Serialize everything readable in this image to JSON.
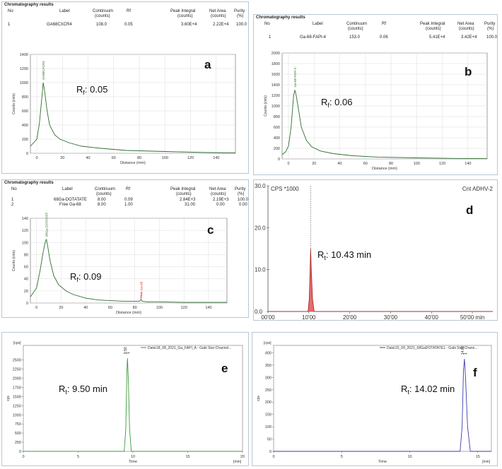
{
  "table_title": "Chromatography results",
  "table_headers": {
    "no": "No",
    "label": "Label",
    "continuum": [
      "Continuum",
      "(counts)"
    ],
    "rf": "Rf",
    "peak": [
      "Peak Integral",
      "(counts)"
    ],
    "net": [
      "Net Area",
      "(counts)"
    ],
    "purity": [
      "Purity",
      "(%)"
    ]
  },
  "panels": {
    "a": {
      "letter": "a",
      "rows": [
        {
          "no": "1",
          "label": "GA68CXCR4",
          "continuum": "108.0",
          "rf": "0.05",
          "peak": "3.60E+4",
          "net": "2.22E+4",
          "purity": "100.0"
        }
      ],
      "annotation_R": "R",
      "annotation_sub": "f",
      "annotation_val": ": 0.05",
      "peak_label": "GA68CXCR4"
    },
    "b": {
      "letter": "b",
      "rows": [
        {
          "no": "1",
          "label": "Ga-68-FAPI-4",
          "continuum": "153.0",
          "rf": "0.06",
          "peak": "5.41E+4",
          "net": "3.42E+4",
          "purity": "100.0"
        }
      ],
      "annotation_R": "R",
      "annotation_sub": "f",
      "annotation_val": ": 0.06",
      "peak_label": "Ga-68-FAPI-4"
    },
    "c": {
      "letter": "c",
      "rows": [
        {
          "no": "1",
          "label": "68Ga-DOTATATE",
          "continuum": "8.00",
          "rf": "0.09",
          "peak": "2.84E+3",
          "net": "2.19E+3",
          "purity": "100.0"
        },
        {
          "no": "2",
          "label": "Free Ga-68",
          "continuum": "8.00",
          "rf": "1.00",
          "peak": "31.00",
          "net": "0.00",
          "purity": "0.00"
        }
      ],
      "annotation_R": "R",
      "annotation_sub": "f",
      "annotation_val": ": 0.09",
      "peak_label": "68Ga-DOTATATE",
      "peak2_label": "Free Ga-68"
    },
    "d": {
      "letter": "d",
      "annotation_R": "R",
      "annotation_sub": "t",
      "annotation_val": ": 10.43 min",
      "ylabel": "CPS *1000",
      "top_right": "Cnt ADHV-2"
    },
    "e": {
      "letter": "e",
      "annotation_R": "R",
      "annotation_sub": "t",
      "annotation_val": ": 9.50 min",
      "legend": "Data\\18_08_2021_Ga_FAPI_A - Gabi Star:Channel...",
      "peak_label": "9.50",
      "peak_mark": "1",
      "unit_y": "[cps]",
      "unit_x": "[min]",
      "xlabel": "Time",
      "ylabel": "cps"
    },
    "f": {
      "letter": "f",
      "annotation_R": "R",
      "annotation_sub": "t",
      "annotation_val": ": 14.02 min",
      "legend": "Data\\15_09_2021_68GaDOTATATE1 - Gabi Star:Chann...",
      "peak_label": "14.02",
      "peak_mark": "1",
      "unit_y": "[cps]",
      "unit_x": "[min]",
      "xlabel": "Time",
      "ylabel": "cps"
    }
  },
  "chart_data": [
    {
      "type": "line",
      "panel": "a",
      "xlabel": "Distance (mm)",
      "ylabel": "Counts (cnts)",
      "xlim": [
        -5,
        155
      ],
      "ylim": [
        0,
        1400
      ],
      "xticks": [
        0,
        20,
        40,
        60,
        80,
        100,
        120,
        140
      ],
      "yticks": [
        0,
        200,
        400,
        600,
        800,
        1000,
        1200,
        1400
      ],
      "series": [
        {
          "x": [
            -5,
            0,
            2,
            4,
            5,
            6,
            8,
            10,
            14,
            18,
            25,
            35,
            50,
            70,
            100,
            130,
            155
          ],
          "y": [
            100,
            200,
            420,
            800,
            1000,
            900,
            600,
            400,
            260,
            200,
            150,
            100,
            70,
            40,
            25,
            12,
            5
          ]
        }
      ]
    },
    {
      "type": "line",
      "panel": "b",
      "xlabel": "Distance (mm)",
      "ylabel": "Counts (cnts)",
      "xlim": [
        -5,
        155
      ],
      "ylim": [
        0,
        2000
      ],
      "xticks": [
        0,
        20,
        40,
        60,
        80,
        100,
        120,
        140
      ],
      "yticks": [
        0,
        200,
        400,
        600,
        800,
        1000,
        1200,
        1400,
        1600,
        1800,
        2000
      ],
      "series": [
        {
          "x": [
            -5,
            -2,
            0,
            2,
            4,
            5,
            6,
            8,
            10,
            14,
            18,
            25,
            35,
            50,
            70,
            100,
            130,
            155
          ],
          "y": [
            80,
            140,
            250,
            600,
            1200,
            1300,
            1200,
            900,
            600,
            350,
            230,
            150,
            100,
            60,
            35,
            20,
            10,
            5
          ]
        }
      ]
    },
    {
      "type": "line",
      "panel": "c",
      "xlabel": "Distance (mm)",
      "ylabel": "Counts (cnts)",
      "xlim": [
        -5,
        155
      ],
      "ylim": [
        0,
        140
      ],
      "xticks": [
        0,
        20,
        40,
        60,
        80,
        100,
        120,
        140
      ],
      "yticks": [
        0,
        20,
        40,
        60,
        80,
        100,
        120,
        140
      ],
      "series": [
        {
          "x": [
            -5,
            0,
            3,
            5,
            7,
            8,
            9,
            11,
            14,
            18,
            24,
            30,
            40,
            50,
            60,
            70,
            80,
            84,
            85,
            86,
            90,
            100,
            120,
            140,
            155
          ],
          "y": [
            10,
            25,
            55,
            80,
            100,
            105,
            95,
            70,
            45,
            30,
            20,
            14,
            8,
            5,
            4,
            3,
            3,
            3,
            6,
            3,
            2,
            2,
            1,
            1,
            1
          ]
        }
      ]
    },
    {
      "type": "line",
      "panel": "d",
      "xlabel": "",
      "ylabel": "CPS *1000",
      "xticklabels": [
        "00'00",
        "10'00",
        "20'00",
        "30'00",
        "40'00",
        "50'00 min"
      ],
      "xlim": [
        0,
        55
      ],
      "ylim": [
        0,
        30
      ],
      "yticks": [
        0,
        10,
        20,
        30
      ],
      "yticklabels": [
        "0.0",
        "10.0",
        "20.0",
        "30.0"
      ],
      "series": [
        {
          "x": [
            0,
            9.8,
            10.1,
            10.3,
            10.43,
            10.6,
            10.9,
            11.3,
            55
          ],
          "y": [
            0,
            0,
            3,
            10,
            15,
            10,
            3,
            0,
            0
          ]
        }
      ]
    },
    {
      "type": "line",
      "panel": "e",
      "xlabel": "Time",
      "ylabel": "cps",
      "xlim": [
        0,
        20
      ],
      "ylim": [
        0,
        2900
      ],
      "xticks": [
        0,
        5,
        10,
        15,
        20
      ],
      "yticks": [
        0,
        250,
        500,
        750,
        1000,
        1250,
        1500,
        1750,
        2000,
        2250,
        2500
      ],
      "series": [
        {
          "name": "Data\\18_08_2021_Ga_FAPI_A - Gabi Star:Channel...",
          "x": [
            0,
            9.2,
            9.35,
            9.45,
            9.5,
            9.58,
            9.7,
            9.85,
            20
          ],
          "y": [
            0,
            0,
            600,
            2200,
            2550,
            2000,
            600,
            0,
            0
          ]
        }
      ]
    },
    {
      "type": "line",
      "panel": "f",
      "xlabel": "Time",
      "ylabel": "cps",
      "xlim": [
        0,
        16
      ],
      "ylim": [
        0,
        430
      ],
      "xticks": [
        0,
        5,
        10,
        15
      ],
      "yticks": [
        0,
        50,
        100,
        150,
        200,
        250,
        300,
        350,
        400
      ],
      "series": [
        {
          "name": "Data\\15_09_2021_68GaDOTATATE1 - Gabi Star:Chann...",
          "x": [
            0,
            13.7,
            13.85,
            13.95,
            14.02,
            14.1,
            14.25,
            14.45,
            16
          ],
          "y": [
            0,
            0,
            100,
            330,
            375,
            300,
            100,
            0,
            0
          ]
        }
      ]
    }
  ]
}
